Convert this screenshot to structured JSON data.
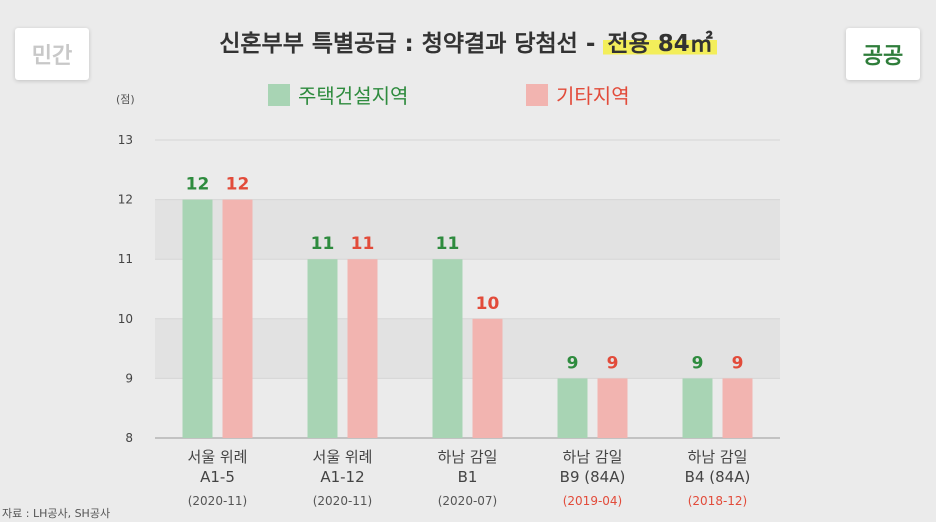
{
  "badges": {
    "left": "민간",
    "right": "공공"
  },
  "title": {
    "main": "신혼부부 특별공급 : 청약결과 당첨선 - ",
    "highlight": "전용 84㎡"
  },
  "unit_label": "(점)",
  "source": "자료 : LH공사, SH공사",
  "colors": {
    "housing": "#a8d4b4",
    "other": "#f2b4b0",
    "housing_label": "#2e8b3e",
    "other_label": "#e24b3a",
    "date_red": "#e24b3a",
    "date_gray": "#555555"
  },
  "chart_data": {
    "type": "bar",
    "categories": [
      {
        "line1": "서울 위례",
        "line2": "A1-5",
        "date": "(2020-11)",
        "date_highlight": false
      },
      {
        "line1": "서울 위례",
        "line2": "A1-12",
        "date": "(2020-11)",
        "date_highlight": false
      },
      {
        "line1": "하남 감일",
        "line2": "B1",
        "date": "(2020-07)",
        "date_highlight": false
      },
      {
        "line1": "하남 감일",
        "line2": "B9 (84A)",
        "date": "(2019-04)",
        "date_highlight": true
      },
      {
        "line1": "하남 감일",
        "line2": "B4 (84A)",
        "date": "(2018-12)",
        "date_highlight": true
      }
    ],
    "series": [
      {
        "name": "주택건설지역",
        "values": [
          12,
          11,
          11,
          9,
          9
        ]
      },
      {
        "name": "기타지역",
        "values": [
          12,
          11,
          10,
          9,
          9
        ]
      }
    ],
    "ylim": [
      8,
      13
    ],
    "yticks": [
      8,
      9,
      10,
      11,
      12,
      13
    ],
    "legend_position": "top",
    "grid": "alternating bands"
  }
}
